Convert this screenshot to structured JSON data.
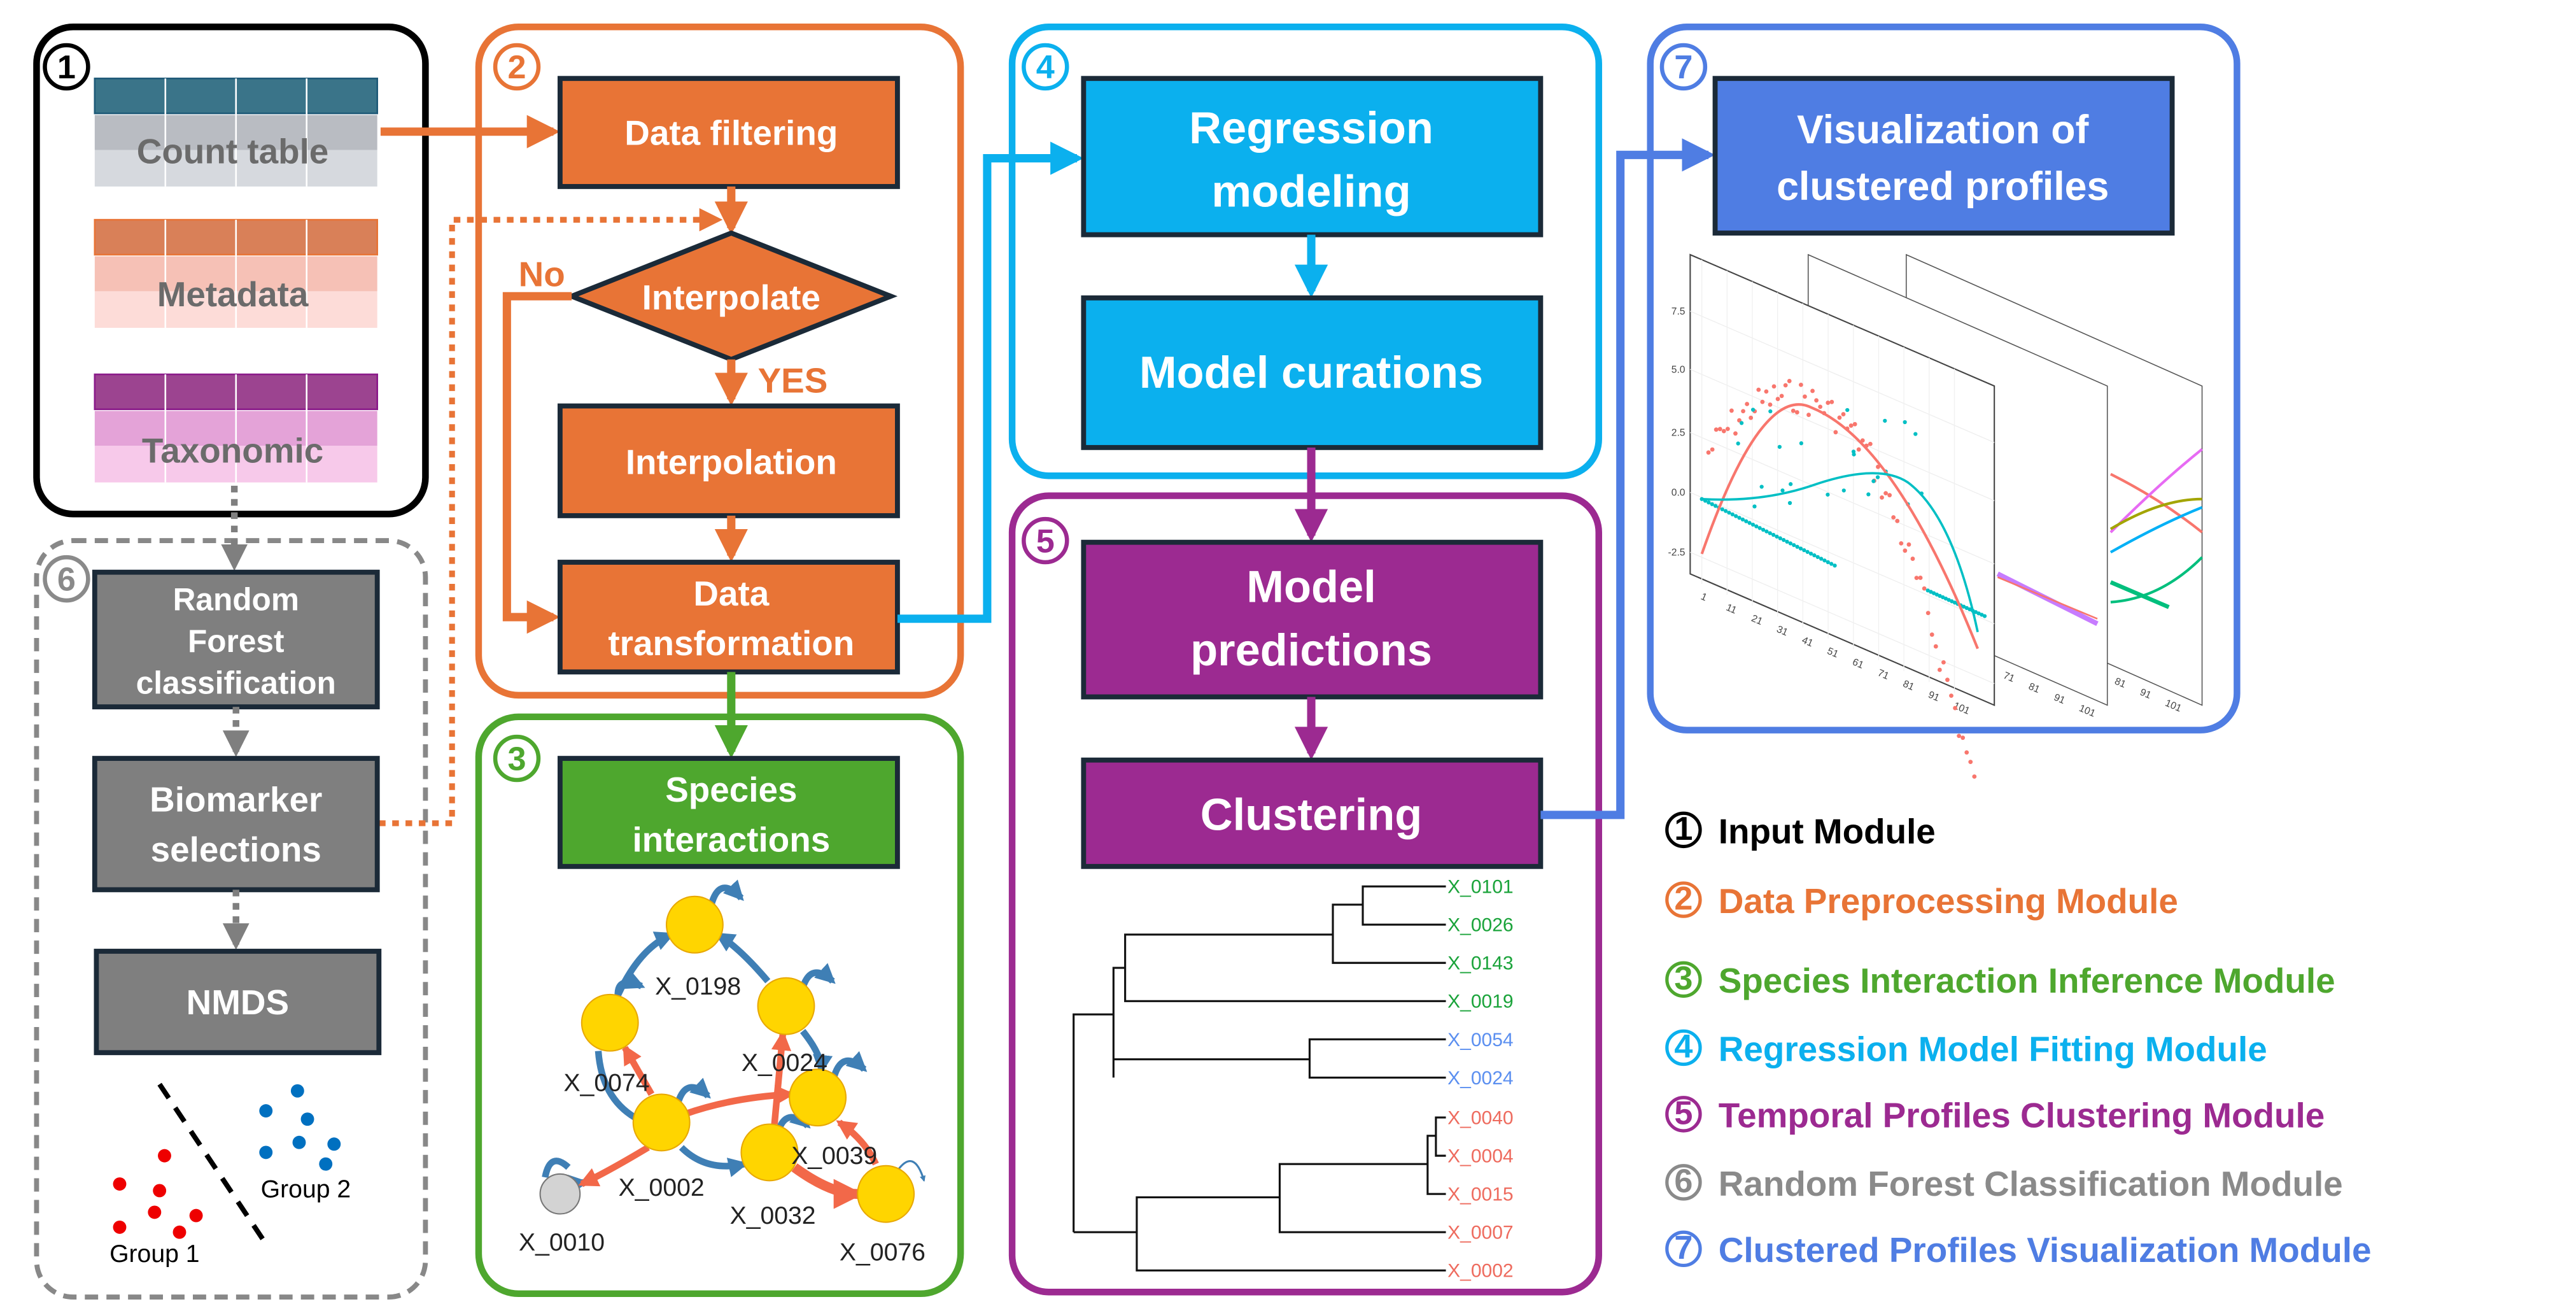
{
  "modules": {
    "input": {
      "number": "1",
      "tables": [
        "Count table",
        "Metadata",
        "Taxonomic"
      ]
    },
    "preprocessing": {
      "number": "2",
      "data_filtering": "Data filtering",
      "decision": "Interpolate",
      "no_label": "No",
      "yes_label": "YES",
      "interpolation": "Interpolation",
      "transformation_line1": "Data",
      "transformation_line2": "transformation"
    },
    "species_interaction": {
      "number": "3",
      "box_line1": "Species",
      "box_line2": "interactions",
      "nodes": [
        "X_0198",
        "X_0074",
        "X_0024",
        "X_0002",
        "X_0039",
        "X_0032",
        "X_0076",
        "X_0010"
      ]
    },
    "regression": {
      "number": "4",
      "modeling_line1": "Regression",
      "modeling_line2": "modeling",
      "curations": "Model curations"
    },
    "clustering": {
      "number": "5",
      "predictions_line1": "Model",
      "predictions_line2": "predictions",
      "clustering": "Clustering",
      "dendrogram_leaves": [
        {
          "label": "X_0101",
          "color": "#1aa33a"
        },
        {
          "label": "X_0026",
          "color": "#1aa33a"
        },
        {
          "label": "X_0143",
          "color": "#1aa33a"
        },
        {
          "label": "X_0019",
          "color": "#1aa33a"
        },
        {
          "label": "X_0054",
          "color": "#5b8ff0"
        },
        {
          "label": "X_0024",
          "color": "#5b8ff0"
        },
        {
          "label": "X_0040",
          "color": "#ee6b5e"
        },
        {
          "label": "X_0004",
          "color": "#ee6b5e"
        },
        {
          "label": "X_0015",
          "color": "#ee6b5e"
        },
        {
          "label": "X_0007",
          "color": "#ee6b5e"
        },
        {
          "label": "X_0002",
          "color": "#ee6b5e"
        }
      ]
    },
    "random_forest": {
      "number": "6",
      "rf_line1": "Random",
      "rf_line2": "Forest",
      "rf_line3": "classification",
      "biomarker_line1": "Biomarker",
      "biomarker_line2": "selections",
      "nmds": "NMDS",
      "group1": "Group 1",
      "group2": "Group 2"
    },
    "visualization": {
      "number": "7",
      "box_line1": "Visualization of",
      "box_line2": "clustered profiles",
      "plot": {
        "y_ticks": [
          "7.5",
          "5.0",
          "2.5",
          "0.0",
          "-2.5"
        ],
        "x_ticks": [
          "1",
          "11",
          "21",
          "31",
          "41",
          "51",
          "61",
          "71",
          "81",
          "91",
          "101"
        ],
        "back_x_ticks": [
          "71",
          "81",
          "91",
          "101"
        ],
        "far_x_ticks": [
          "81",
          "91",
          "101"
        ]
      }
    }
  },
  "legend": [
    {
      "number": "1",
      "label": "Input Module",
      "color": "#000000"
    },
    {
      "number": "2",
      "label": "Data Preprocessing Module",
      "color": "#e87436"
    },
    {
      "number": "3",
      "label": "Species Interaction Inference Module",
      "color": "#4ea72e"
    },
    {
      "number": "4",
      "label": "Regression Model Fitting Module",
      "color": "#0bb0ee"
    },
    {
      "number": "5",
      "label": "Temporal Profiles Clustering Module",
      "color": "#9c2a91"
    },
    {
      "number": "6",
      "label": "Random Forest Classification Module",
      "color": "#8a8a8a"
    },
    {
      "number": "7",
      "label": "Clustered Profiles Visualization Module",
      "color": "#4f7de3"
    }
  ],
  "colors": {
    "orange": "#e87436",
    "green": "#4ea72e",
    "cyan": "#0bb0ee",
    "purple": "#9c2a91",
    "grey": "#7f7f7f",
    "blue": "#4f7de3"
  }
}
